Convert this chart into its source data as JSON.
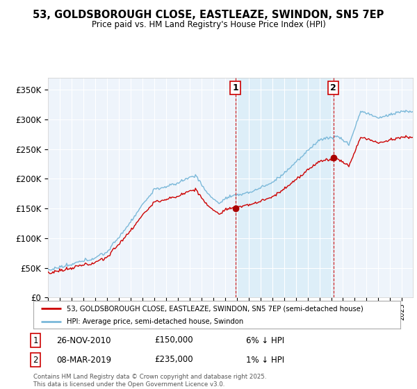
{
  "title": "53, GOLDSBOROUGH CLOSE, EASTLEAZE, SWINDON, SN5 7EP",
  "subtitle": "Price paid vs. HM Land Registry's House Price Index (HPI)",
  "x_start_year": 1995,
  "x_end_year": 2025,
  "y_min": 0,
  "y_max": 370000,
  "y_ticks": [
    0,
    50000,
    100000,
    150000,
    200000,
    250000,
    300000,
    350000
  ],
  "y_tick_labels": [
    "£0",
    "£50K",
    "£100K",
    "£150K",
    "£200K",
    "£250K",
    "£300K",
    "£350K"
  ],
  "hpi_color": "#7ab8d9",
  "price_color": "#cc0000",
  "shaded_color": "#ddeef8",
  "purchase1_year": 2010.9,
  "purchase1_price": 150000,
  "purchase1_label": "1",
  "purchase1_date": "26-NOV-2010",
  "purchase1_hpi_diff": "6% ↓ HPI",
  "purchase2_year": 2019.18,
  "purchase2_price": 235000,
  "purchase2_label": "2",
  "purchase2_date": "08-MAR-2019",
  "purchase2_hpi_diff": "1% ↓ HPI",
  "legend_line1": "53, GOLDSBOROUGH CLOSE, EASTLEAZE, SWINDON, SN5 7EP (semi-detached house)",
  "legend_line2": "HPI: Average price, semi-detached house, Swindon",
  "footer": "Contains HM Land Registry data © Crown copyright and database right 2025.\nThis data is licensed under the Open Government Licence v3.0.",
  "plot_bg_color": "#eef4fb",
  "fig_bg_color": "#ffffff"
}
